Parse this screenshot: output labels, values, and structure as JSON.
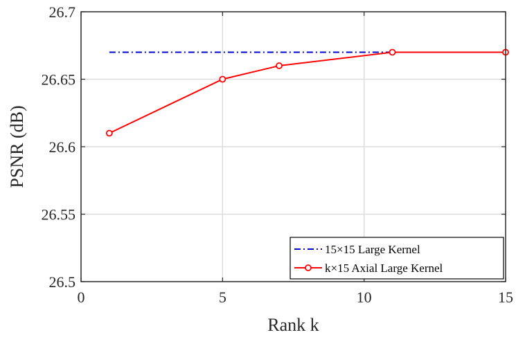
{
  "chart_data": {
    "type": "line",
    "xlabel": "Rank k",
    "ylabel": "PSNR (dB)",
    "xlim": [
      0,
      15
    ],
    "ylim": [
      26.5,
      26.7
    ],
    "xticks": [
      0,
      5,
      10,
      15
    ],
    "yticks": [
      26.5,
      26.55,
      26.6,
      26.65,
      26.7
    ],
    "xtick_labels": [
      "0",
      "5",
      "10",
      "15"
    ],
    "ytick_labels": [
      "26.5",
      "26.55",
      "26.6",
      "26.65",
      "26.7"
    ],
    "grid": true,
    "legend_position": "bottom-right",
    "series": [
      {
        "name": "15×15 Large Kernel",
        "color": "#0000cc",
        "line_style": "dash-dot",
        "marker": "none",
        "x": [
          1,
          15
        ],
        "y": [
          26.67,
          26.67
        ]
      },
      {
        "name": "k×15 Axial Large Kernel",
        "color": "#ff0000",
        "line_style": "solid",
        "marker": "circle",
        "x": [
          1,
          5,
          7,
          11,
          15
        ],
        "y": [
          26.61,
          26.65,
          26.66,
          26.67,
          26.67
        ]
      }
    ]
  }
}
